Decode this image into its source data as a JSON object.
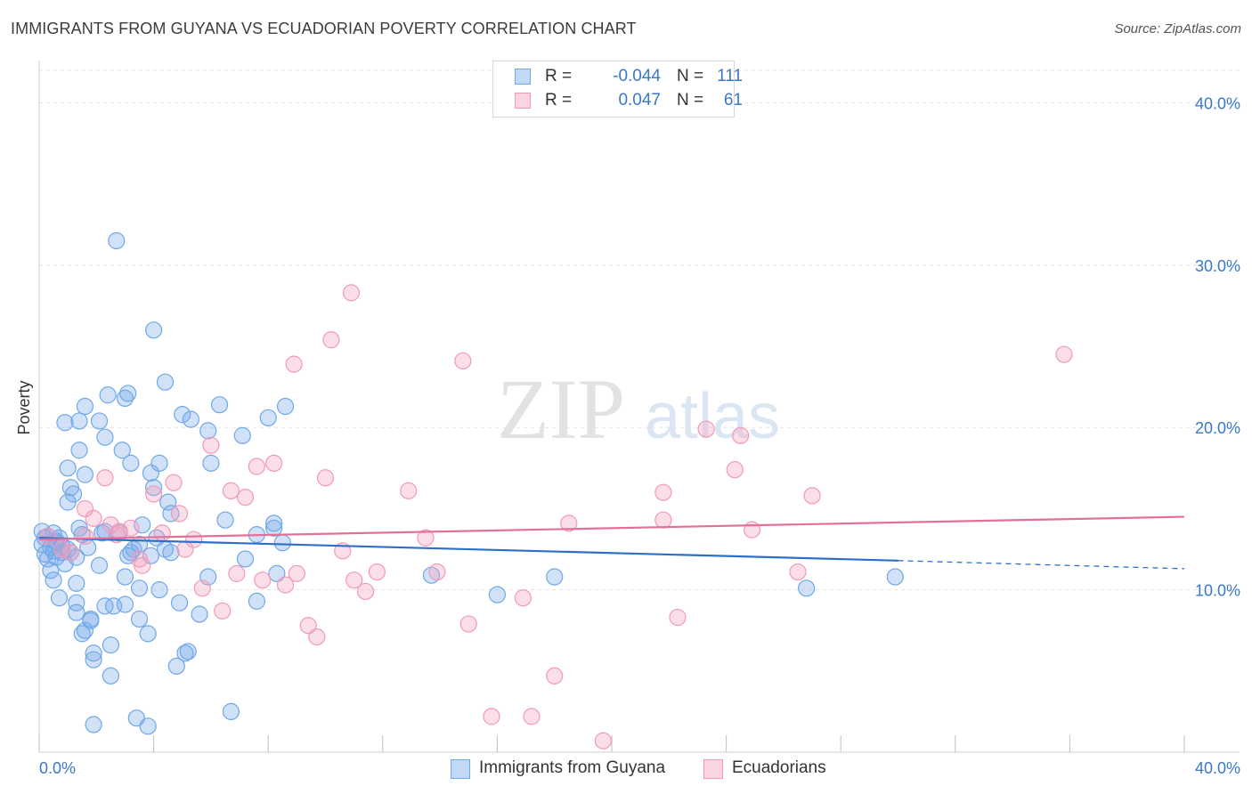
{
  "title": "IMMIGRANTS FROM GUYANA VS ECUADORIAN POVERTY CORRELATION CHART",
  "source": "Source: ZipAtlas.com",
  "watermark": {
    "zip": "ZIP",
    "atlas": "atlas"
  },
  "colors": {
    "blue": "#6fa8e6",
    "blue_fill": "rgba(120,170,235,0.35)",
    "blue_line": "#2d6fc9",
    "pink": "#f09ab8",
    "pink_fill": "rgba(245,160,190,0.35)",
    "pink_line": "#e37099",
    "tick_text": "#3a78c8",
    "grid": "#e3e3e3"
  },
  "legend": {
    "rows": [
      {
        "r_label": "R =",
        "r_value": "-0.044",
        "n_label": "N =",
        "n_value": "111"
      },
      {
        "r_label": "R =",
        "r_value": "0.047",
        "n_label": "N =",
        "n_value": "61"
      }
    ]
  },
  "chart_data": {
    "type": "scatter",
    "title": "IMMIGRANTS FROM GUYANA VS ECUADORIAN POVERTY CORRELATION CHART",
    "xlabel": "",
    "ylabel": "Poverty",
    "xlim": [
      0,
      40
    ],
    "ylim": [
      0,
      42
    ],
    "x_tick_labels": [
      "0.0%",
      "40.0%"
    ],
    "y_ticks": [
      10,
      20,
      30,
      40
    ],
    "y_tick_labels": [
      "10.0%",
      "20.0%",
      "30.0%",
      "40.0%"
    ],
    "grid": true,
    "legend_position": "bottom",
    "series": [
      {
        "name": "Immigrants from Guyana",
        "color": "#6fa8e6",
        "trend": {
          "x0": 0,
          "y0": 13.2,
          "x1": 30,
          "y1": 11.8,
          "dash_x1": 40,
          "dash_y1": 11.3
        },
        "points": [
          [
            0.1,
            13.6
          ],
          [
            0.1,
            12.8
          ],
          [
            0.2,
            13.2
          ],
          [
            0.2,
            12.2
          ],
          [
            0.3,
            11.9
          ],
          [
            0.3,
            13.3
          ],
          [
            0.4,
            12.6
          ],
          [
            0.4,
            11.2
          ],
          [
            0.5,
            13.5
          ],
          [
            0.5,
            12.4
          ],
          [
            0.5,
            10.6
          ],
          [
            0.6,
            13.0
          ],
          [
            0.6,
            12.9
          ],
          [
            0.6,
            12.0
          ],
          [
            0.7,
            13.2
          ],
          [
            0.7,
            9.5
          ],
          [
            0.8,
            12.7
          ],
          [
            0.8,
            12.3
          ],
          [
            0.9,
            20.3
          ],
          [
            0.9,
            11.6
          ],
          [
            1.0,
            12.5
          ],
          [
            1.0,
            17.5
          ],
          [
            1.0,
            15.4
          ],
          [
            1.1,
            16.3
          ],
          [
            1.1,
            12.3
          ],
          [
            1.2,
            15.9
          ],
          [
            1.3,
            10.4
          ],
          [
            1.3,
            9.2
          ],
          [
            1.3,
            8.6
          ],
          [
            1.3,
            12.0
          ],
          [
            1.4,
            20.4
          ],
          [
            1.4,
            18.6
          ],
          [
            1.4,
            13.8
          ],
          [
            1.5,
            7.3
          ],
          [
            1.5,
            13.4
          ],
          [
            1.6,
            21.3
          ],
          [
            1.6,
            17.1
          ],
          [
            1.6,
            7.5
          ],
          [
            1.7,
            12.6
          ],
          [
            1.8,
            8.2
          ],
          [
            1.8,
            8.1
          ],
          [
            1.9,
            6.1
          ],
          [
            1.9,
            5.7
          ],
          [
            1.9,
            1.7
          ],
          [
            2.1,
            11.5
          ],
          [
            2.1,
            20.4
          ],
          [
            2.2,
            13.5
          ],
          [
            2.3,
            19.4
          ],
          [
            2.3,
            9.0
          ],
          [
            2.3,
            13.6
          ],
          [
            2.4,
            22.0
          ],
          [
            2.5,
            6.6
          ],
          [
            2.5,
            4.7
          ],
          [
            2.6,
            9.0
          ],
          [
            2.7,
            31.5
          ],
          [
            2.8,
            13.5
          ],
          [
            2.9,
            18.6
          ],
          [
            3.0,
            21.8
          ],
          [
            3.0,
            9.1
          ],
          [
            3.0,
            10.8
          ],
          [
            3.1,
            22.1
          ],
          [
            3.1,
            12.1
          ],
          [
            3.2,
            12.3
          ],
          [
            3.2,
            17.8
          ],
          [
            3.3,
            12.5
          ],
          [
            3.4,
            2.1
          ],
          [
            3.5,
            12.8
          ],
          [
            3.5,
            8.2
          ],
          [
            3.5,
            10.1
          ],
          [
            3.6,
            14.0
          ],
          [
            3.8,
            1.6
          ],
          [
            3.8,
            7.3
          ],
          [
            3.9,
            17.2
          ],
          [
            3.9,
            12.1
          ],
          [
            4.0,
            16.3
          ],
          [
            4.0,
            26.0
          ],
          [
            4.1,
            13.2
          ],
          [
            4.2,
            17.8
          ],
          [
            4.2,
            10.0
          ],
          [
            4.4,
            22.8
          ],
          [
            4.4,
            12.5
          ],
          [
            4.5,
            15.4
          ],
          [
            4.6,
            12.3
          ],
          [
            4.6,
            14.7
          ],
          [
            4.8,
            5.3
          ],
          [
            4.9,
            9.2
          ],
          [
            5.0,
            20.8
          ],
          [
            5.1,
            6.1
          ],
          [
            5.2,
            6.2
          ],
          [
            5.3,
            20.5
          ],
          [
            5.6,
            8.5
          ],
          [
            5.9,
            19.8
          ],
          [
            5.9,
            10.8
          ],
          [
            6.0,
            17.8
          ],
          [
            6.3,
            21.4
          ],
          [
            6.5,
            14.3
          ],
          [
            6.7,
            2.5
          ],
          [
            7.1,
            19.5
          ],
          [
            7.2,
            11.9
          ],
          [
            7.6,
            9.3
          ],
          [
            7.6,
            13.4
          ],
          [
            8.0,
            20.6
          ],
          [
            8.2,
            13.8
          ],
          [
            8.2,
            14.1
          ],
          [
            8.3,
            11.0
          ],
          [
            8.5,
            12.9
          ],
          [
            8.6,
            21.3
          ],
          [
            13.7,
            10.9
          ],
          [
            16.0,
            9.7
          ],
          [
            18.0,
            10.8
          ],
          [
            26.8,
            10.1
          ],
          [
            29.9,
            10.8
          ]
        ]
      },
      {
        "name": "Ecuadorians",
        "color": "#f09ab8",
        "trend": {
          "x0": 0,
          "y0": 13.1,
          "x1": 40,
          "y1": 14.5
        },
        "points": [
          [
            0.3,
            13.3
          ],
          [
            0.8,
            12.5
          ],
          [
            1.1,
            12.3
          ],
          [
            1.6,
            13.3
          ],
          [
            1.6,
            15.0
          ],
          [
            1.9,
            14.4
          ],
          [
            2.3,
            16.9
          ],
          [
            2.5,
            14.0
          ],
          [
            2.7,
            13.4
          ],
          [
            2.8,
            13.6
          ],
          [
            3.2,
            13.8
          ],
          [
            3.5,
            11.9
          ],
          [
            3.6,
            11.5
          ],
          [
            4.0,
            15.9
          ],
          [
            4.3,
            13.5
          ],
          [
            4.7,
            16.6
          ],
          [
            4.9,
            14.7
          ],
          [
            5.1,
            12.5
          ],
          [
            5.4,
            13.1
          ],
          [
            5.7,
            10.1
          ],
          [
            6.0,
            18.9
          ],
          [
            6.4,
            8.7
          ],
          [
            6.7,
            16.1
          ],
          [
            6.9,
            11.0
          ],
          [
            7.2,
            15.7
          ],
          [
            7.6,
            17.6
          ],
          [
            7.8,
            10.6
          ],
          [
            8.2,
            17.8
          ],
          [
            8.6,
            10.3
          ],
          [
            8.9,
            23.9
          ],
          [
            9.0,
            11.0
          ],
          [
            9.4,
            7.8
          ],
          [
            9.7,
            7.1
          ],
          [
            10.0,
            16.9
          ],
          [
            10.2,
            25.4
          ],
          [
            10.6,
            12.4
          ],
          [
            10.9,
            28.3
          ],
          [
            11.0,
            10.6
          ],
          [
            11.4,
            9.9
          ],
          [
            11.8,
            11.1
          ],
          [
            12.9,
            16.1
          ],
          [
            13.5,
            13.2
          ],
          [
            13.9,
            11.1
          ],
          [
            14.8,
            24.1
          ],
          [
            15.0,
            7.9
          ],
          [
            15.8,
            2.2
          ],
          [
            16.9,
            9.5
          ],
          [
            17.2,
            2.2
          ],
          [
            18.0,
            4.7
          ],
          [
            18.5,
            14.1
          ],
          [
            19.7,
            0.7
          ],
          [
            21.8,
            16.0
          ],
          [
            21.8,
            14.3
          ],
          [
            22.3,
            8.3
          ],
          [
            23.3,
            19.9
          ],
          [
            24.3,
            17.4
          ],
          [
            24.5,
            19.5
          ],
          [
            24.9,
            13.7
          ],
          [
            26.5,
            11.1
          ],
          [
            27.0,
            15.8
          ],
          [
            35.8,
            24.5
          ]
        ]
      }
    ]
  }
}
